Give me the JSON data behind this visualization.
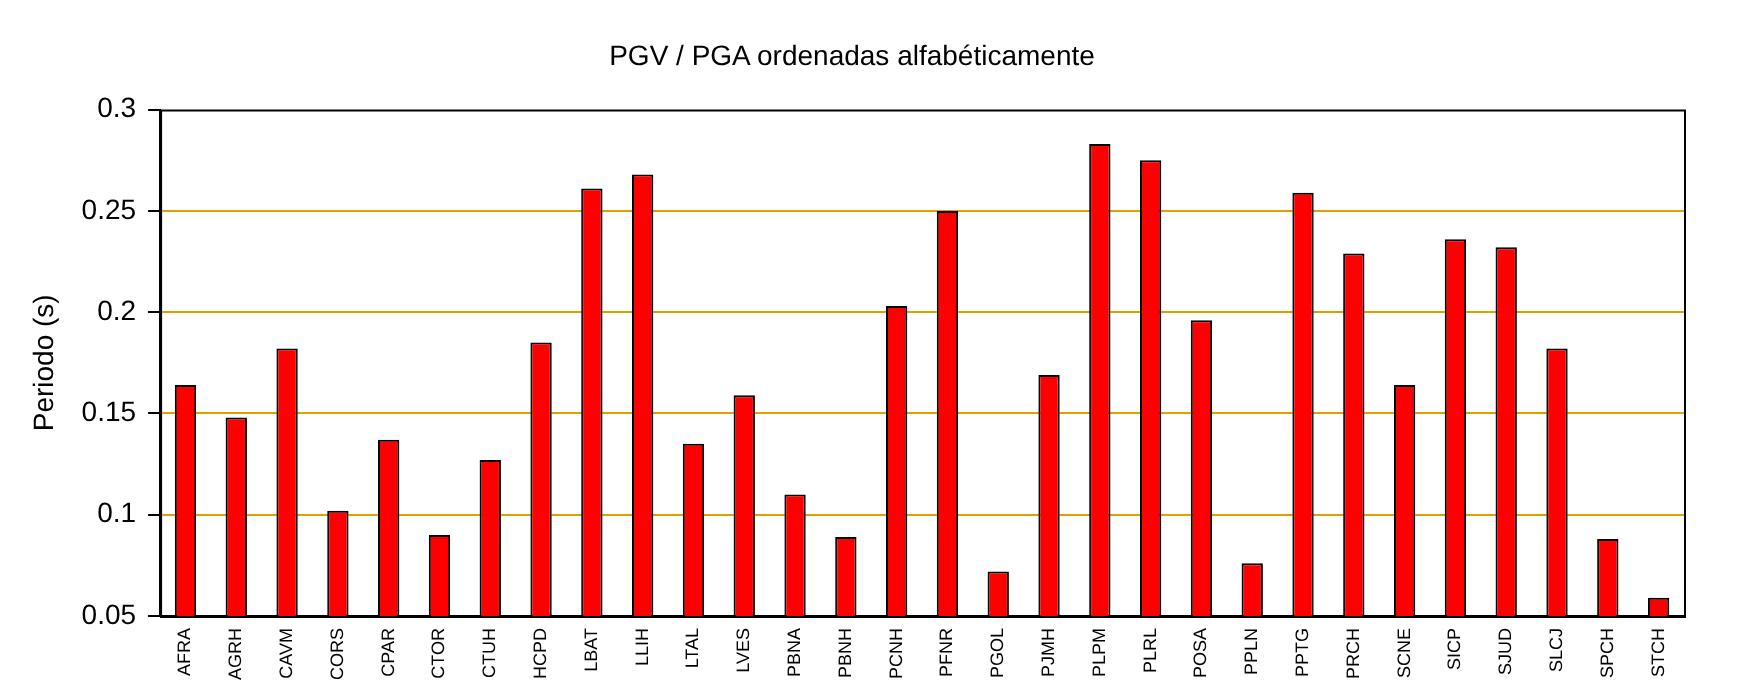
{
  "chart_data": {
    "type": "bar",
    "title": "PGV / PGA ordenadas alfabéticamente",
    "ylabel": "Periodo (s)",
    "categories": [
      "AFRA",
      "AGRH",
      "CAVM",
      "CORS",
      "CPAR",
      "CTOR",
      "CTUH",
      "HCPD",
      "LBAT",
      "LLIH",
      "LTAL",
      "LVES",
      "PBNA",
      "PBNH",
      "PCNH",
      "PFNR",
      "PGOL",
      "PJMH",
      "PLPM",
      "PLRL",
      "POSA",
      "PPLN",
      "PPTG",
      "PRCH",
      "SCNE",
      "SICP",
      "SJUD",
      "SLCJ",
      "SPCH",
      "STCH"
    ],
    "values": [
      0.164,
      0.148,
      0.182,
      0.102,
      0.137,
      0.09,
      0.127,
      0.185,
      0.261,
      0.268,
      0.135,
      0.159,
      0.11,
      0.089,
      0.203,
      0.25,
      0.072,
      0.169,
      0.283,
      0.275,
      0.196,
      0.076,
      0.259,
      0.229,
      0.164,
      0.236,
      0.232,
      0.182,
      0.088,
      0.059
    ],
    "color": "#ff0000",
    "ylim": [
      0.05,
      0.3
    ],
    "yticks": [
      0.05,
      0.1,
      0.15,
      0.2,
      0.25,
      0.3
    ],
    "grid": "y",
    "legend": false
  }
}
